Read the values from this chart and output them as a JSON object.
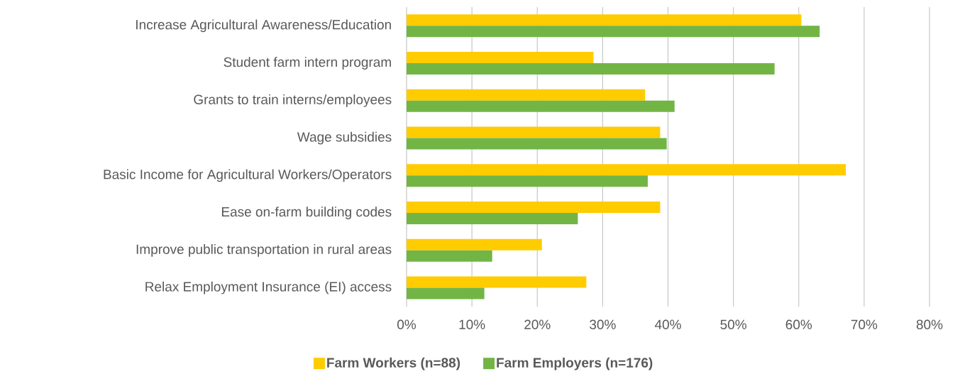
{
  "chart_data": {
    "type": "bar",
    "orientation": "horizontal",
    "categories": [
      "Increase Agricultural Awareness/Education",
      "Student farm intern program",
      "Grants to train interns/employees",
      "Wage subsidies",
      "Basic Income for Agricultural Workers/Operators",
      "Ease on-farm building codes",
      "Improve public transportation in rural areas",
      "Relax Employment Insurance (EI) access"
    ],
    "series": [
      {
        "name": "Farm Workers (n=88)",
        "color": "#ffcc00",
        "values": [
          60.4,
          28.6,
          36.5,
          38.8,
          67.2,
          38.8,
          20.7,
          27.5
        ]
      },
      {
        "name": "Farm Employers (n=176)",
        "color": "#72b545",
        "values": [
          63.2,
          56.3,
          41.0,
          39.8,
          36.9,
          26.2,
          13.1,
          11.9
        ]
      }
    ],
    "xlim": [
      0,
      80
    ],
    "xticks": [
      {
        "value": 0,
        "label": "0%"
      },
      {
        "value": 10,
        "label": "10%"
      },
      {
        "value": 20,
        "label": "20%"
      },
      {
        "value": 30,
        "label": "30%"
      },
      {
        "value": 40,
        "label": "40%"
      },
      {
        "value": 50,
        "label": "50%"
      },
      {
        "value": 60,
        "label": "60%"
      },
      {
        "value": 70,
        "label": "70%"
      },
      {
        "value": 80,
        "label": "80%"
      }
    ],
    "grid": "x",
    "legend": "bottom"
  }
}
